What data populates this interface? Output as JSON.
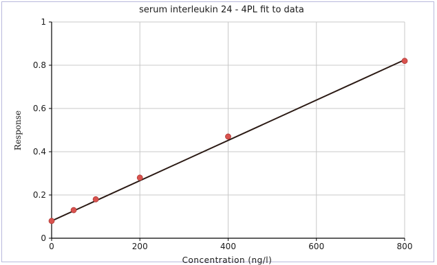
{
  "chart_data": {
    "type": "line",
    "title": "serum interleukin 24 - 4PL fit to data",
    "xlabel": "Concentration (ng/l)",
    "ylabel": "Response",
    "xlim": [
      0,
      800
    ],
    "ylim": [
      0,
      1
    ],
    "x_ticks": [
      0,
      200,
      400,
      600,
      800
    ],
    "y_ticks": [
      0,
      0.2,
      0.4,
      0.6,
      0.8,
      1
    ],
    "x_tick_labels": [
      "0",
      "200",
      "400",
      "600",
      "800"
    ],
    "y_tick_labels": [
      "0",
      "0.2",
      "0.4",
      "0.6",
      "0.8",
      "1"
    ],
    "grid": true,
    "points": {
      "x": [
        0,
        50,
        100,
        200,
        400,
        800
      ],
      "y": [
        0.08,
        0.13,
        0.18,
        0.28,
        0.47,
        0.82
      ]
    },
    "fit_line": {
      "x": [
        0,
        800
      ],
      "y": [
        0.08,
        0.825
      ]
    },
    "colors": {
      "points": "#d9534f",
      "line": "#2b1a14",
      "grid": "#c8c8c8",
      "axis": "#000000"
    }
  }
}
